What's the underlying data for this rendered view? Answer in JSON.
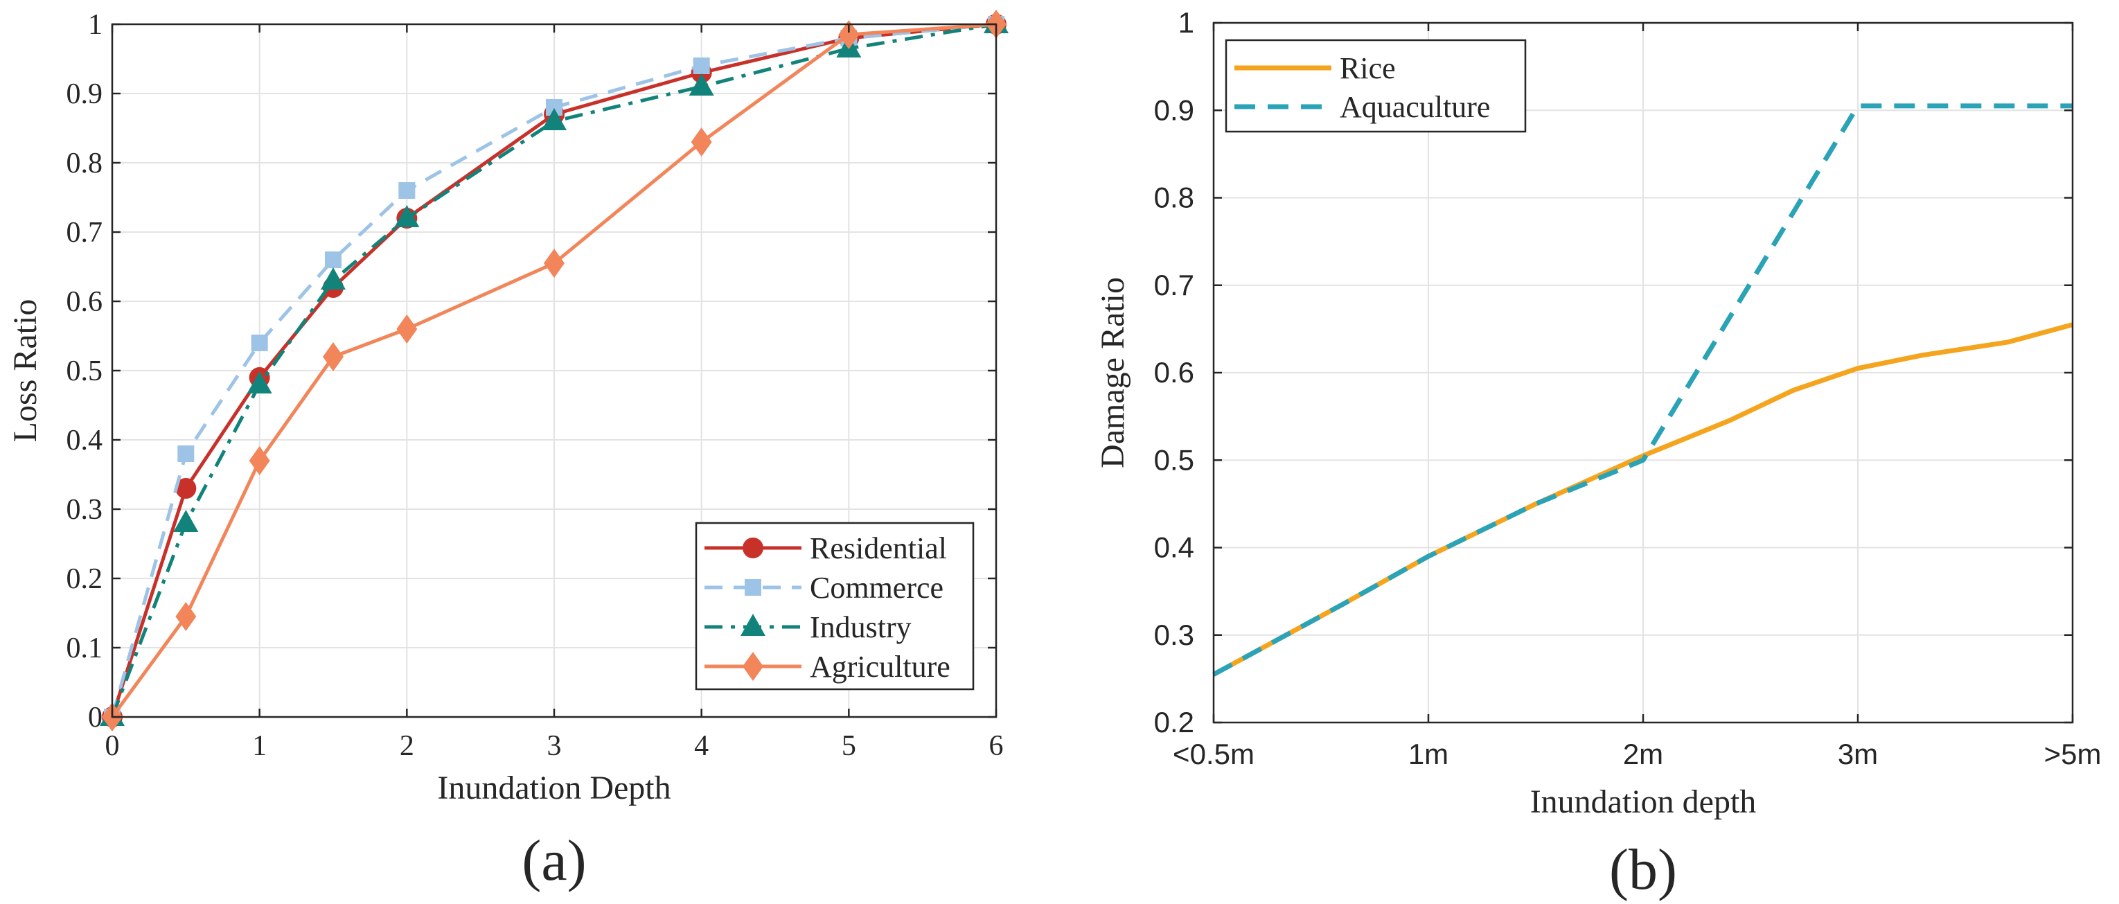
{
  "colors": {
    "Residential": "#c8312a",
    "Commerce": "#9dc3e6",
    "Industry": "#12837a",
    "Agriculture": "#f2855a",
    "Rice": "#f5a41e",
    "Aquaculture": "#2aa3b7"
  },
  "chart_data": [
    {
      "type": "line",
      "panel_label": "(a)",
      "xlabel": "Inundation Depth",
      "ylabel": "Loss Ratio",
      "xlim": [
        0,
        6
      ],
      "ylim": [
        0,
        1
      ],
      "xticks": [
        0,
        1,
        2,
        3,
        4,
        5,
        6
      ],
      "xtick_labels": [
        "0",
        "1",
        "2",
        "3",
        "4",
        "5",
        "6"
      ],
      "yticks": [
        0,
        0.1,
        0.2,
        0.3,
        0.4,
        0.5,
        0.6,
        0.7,
        0.8,
        0.9,
        1
      ],
      "ytick_labels": [
        "0",
        "0.1",
        "0.2",
        "0.3",
        "0.4",
        "0.5",
        "0.6",
        "0.7",
        "0.8",
        "0.9",
        "1"
      ],
      "grid": true,
      "legend_position": "bottom-right",
      "x": [
        0,
        0.5,
        1,
        1.5,
        2,
        3,
        4,
        5,
        6
      ],
      "series": [
        {
          "name": "Residential",
          "marker": "circle",
          "line": "solid",
          "values": [
            0,
            0.33,
            0.49,
            0.62,
            0.72,
            0.87,
            0.93,
            0.98,
            1.0
          ]
        },
        {
          "name": "Commerce",
          "marker": "square",
          "line": "dashed",
          "values": [
            0,
            0.38,
            0.54,
            0.66,
            0.76,
            0.88,
            0.94,
            0.98,
            1.0
          ]
        },
        {
          "name": "Industry",
          "marker": "triangle",
          "line": "dashdot",
          "values": [
            0,
            0.28,
            0.48,
            0.63,
            0.72,
            0.86,
            0.91,
            0.965,
            1.0
          ]
        },
        {
          "name": "Agriculture",
          "marker": "diamond",
          "line": "solid",
          "values": [
            0,
            0.145,
            0.37,
            0.52,
            0.56,
            0.655,
            0.83,
            0.985,
            1.0
          ]
        }
      ]
    },
    {
      "type": "line",
      "panel_label": "(b)",
      "xlabel": "Inundation depth",
      "ylabel": "Damage Ratio",
      "xlim": [
        0,
        4
      ],
      "ylim": [
        0.2,
        1
      ],
      "xticks": [
        0,
        1,
        2,
        3,
        4
      ],
      "xtick_labels": [
        "<0.5m",
        "1m",
        "2m",
        "3m",
        ">5m"
      ],
      "yticks": [
        0.2,
        0.3,
        0.4,
        0.5,
        0.6,
        0.7,
        0.8,
        0.9,
        1
      ],
      "ytick_labels": [
        "0.2",
        "0.3",
        "0.4",
        "0.5",
        "0.6",
        "0.7",
        "0.8",
        "0.9",
        "1"
      ],
      "grid": true,
      "legend_position": "top-left",
      "series": [
        {
          "name": "Rice",
          "line": "solid",
          "x": [
            0,
            0.3,
            0.6,
            1,
            1.5,
            2,
            2.4,
            2.7,
            3,
            3.3,
            3.7,
            4
          ],
          "values": [
            0.255,
            0.295,
            0.335,
            0.39,
            0.45,
            0.505,
            0.545,
            0.58,
            0.605,
            0.62,
            0.635,
            0.655
          ]
        },
        {
          "name": "Aquaculture",
          "line": "dashed",
          "x": [
            0,
            0.3,
            0.6,
            1,
            1.5,
            2,
            3,
            4
          ],
          "values": [
            0.255,
            0.295,
            0.335,
            0.39,
            0.45,
            0.5,
            0.905,
            0.905
          ]
        }
      ]
    }
  ]
}
